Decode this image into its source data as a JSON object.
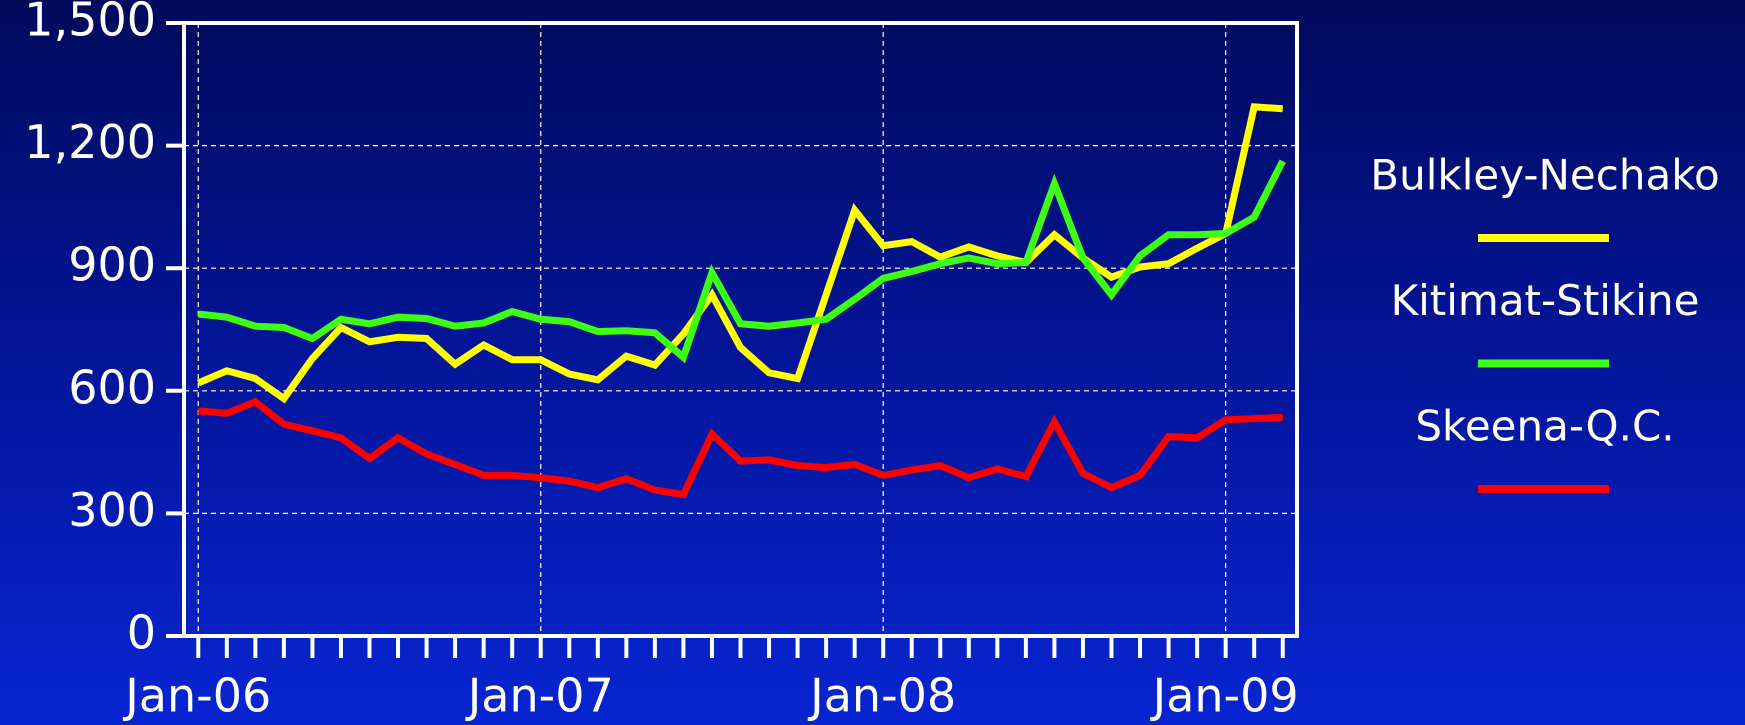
{
  "chart_data": {
    "type": "line",
    "categories": [
      "Jan-06",
      null,
      null,
      null,
      null,
      null,
      null,
      null,
      null,
      null,
      null,
      null,
      "Jan-07",
      null,
      null,
      null,
      null,
      null,
      null,
      null,
      null,
      null,
      null,
      null,
      "Jan-08",
      null,
      null,
      null,
      null,
      null,
      null,
      null,
      null,
      null,
      null,
      null,
      "Jan-09",
      null,
      null
    ],
    "series": [
      {
        "name": "Bulkley-Nechako",
        "color": "#ffff00",
        "values": [
          619,
          649,
          630,
          581,
          679,
          755,
          720,
          731,
          728,
          665,
          712,
          676,
          676,
          641,
          627,
          685,
          663,
          739,
          835,
          706,
          644,
          630,
          835,
          1042,
          955,
          965,
          927,
          952,
          930,
          914,
          982,
          925,
          878,
          903,
          911,
          949,
          985,
          1295,
          1290
        ]
      },
      {
        "name": "Kitimat-Stikine",
        "color": "#3cff14",
        "values": [
          788,
          780,
          758,
          755,
          728,
          775,
          764,
          780,
          777,
          758,
          766,
          794,
          775,
          769,
          745,
          747,
          742,
          682,
          889,
          764,
          758,
          766,
          775,
          824,
          875,
          892,
          911,
          925,
          911,
          914,
          1107,
          925,
          835,
          930,
          982,
          982,
          985,
          1025,
          1162
        ]
      },
      {
        "name": "Skeena-Q.C.",
        "color": "#ff0000",
        "values": [
          551,
          545,
          573,
          518,
          502,
          485,
          434,
          485,
          445,
          420,
          393,
          393,
          387,
          379,
          363,
          385,
          357,
          346,
          494,
          428,
          431,
          417,
          412,
          420,
          393,
          406,
          417,
          387,
          409,
          390,
          524,
          398,
          363,
          393,
          488,
          485,
          529,
          532,
          535
        ]
      }
    ],
    "ylim": [
      0,
      1500
    ],
    "yticks": [
      0,
      300,
      600,
      900,
      {
        "value": 1200,
        "label": "1,200"
      },
      {
        "value": 1500,
        "label": "1,500"
      }
    ],
    "grid": true
  }
}
